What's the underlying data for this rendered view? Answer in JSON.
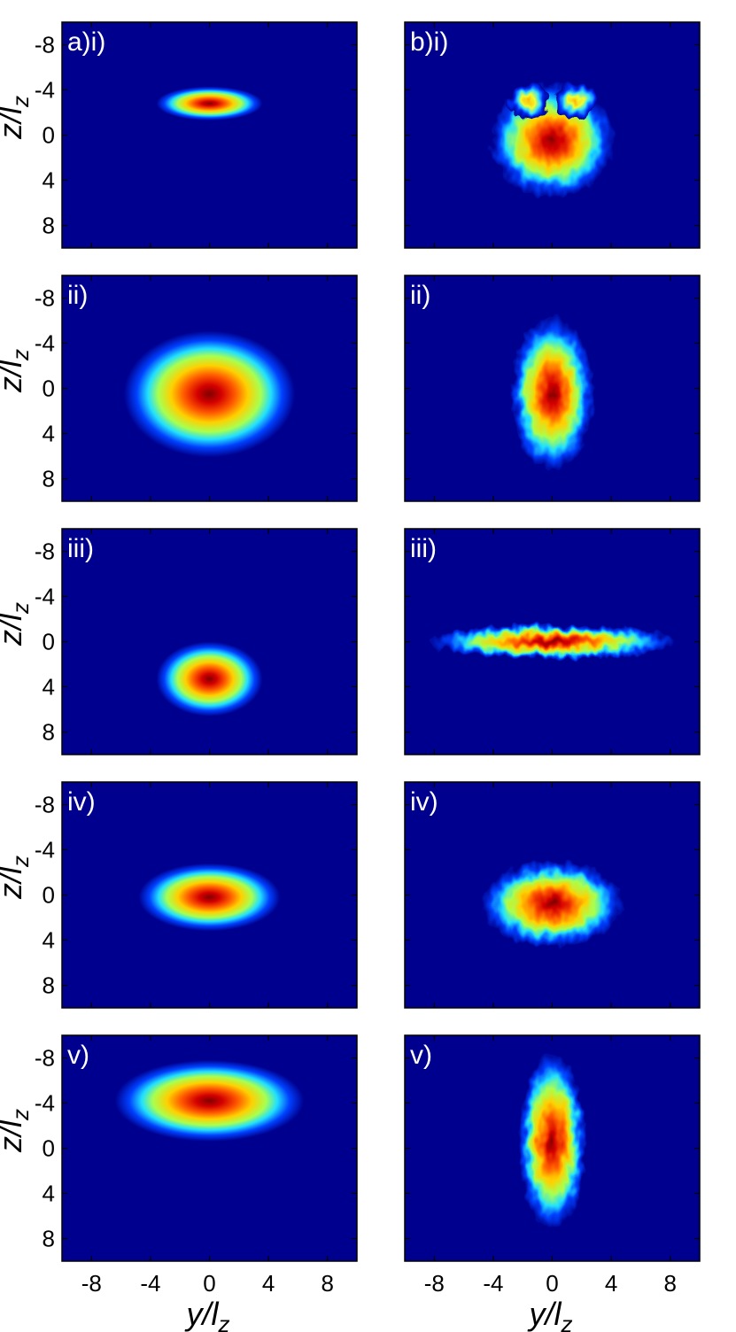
{
  "colors": {
    "background": "#00008f",
    "colormap": "jet"
  },
  "axis_labels": {
    "y_label": "z/l",
    "y_label_sub": "z",
    "x_label": "y/l",
    "x_label_sub": "z"
  },
  "chart_data": {
    "type": "heatmap",
    "colormap": "jet",
    "layout": "5 rows x 2 columns of density maps",
    "x_axis": {
      "label": "y/l_z",
      "range": [
        -10,
        10
      ],
      "ticks": [
        -8,
        -4,
        0,
        4,
        8
      ]
    },
    "y_axis": {
      "label": "z/l_z",
      "range": [
        -10,
        10
      ],
      "ticks": [
        -8,
        -4,
        0,
        4,
        8
      ],
      "inverted": true
    },
    "panels": [
      {
        "label": "a)i)",
        "col": "a",
        "row": 0,
        "shape": "smooth",
        "blobs": [
          {
            "cx": 0,
            "cz": -2.8,
            "sy": 3.6,
            "sz": 1.5,
            "amp": 1.0
          }
        ]
      },
      {
        "label": "ii)",
        "col": "a",
        "row": 1,
        "shape": "smooth",
        "blobs": [
          {
            "cx": 0,
            "cz": 0.5,
            "sy": 5.8,
            "sz": 5.6,
            "amp": 1.0
          }
        ]
      },
      {
        "label": "iii)",
        "col": "a",
        "row": 2,
        "shape": "smooth",
        "blobs": [
          {
            "cx": 0,
            "cz": 3.3,
            "sy": 3.6,
            "sz": 3.3,
            "amp": 1.0
          }
        ]
      },
      {
        "label": "iv)",
        "col": "a",
        "row": 3,
        "shape": "smooth",
        "blobs": [
          {
            "cx": 0,
            "cz": 0.2,
            "sy": 4.8,
            "sz": 3.0,
            "amp": 1.0
          }
        ]
      },
      {
        "label": "v)",
        "col": "a",
        "row": 4,
        "shape": "smooth",
        "blobs": [
          {
            "cx": 0,
            "cz": -4.2,
            "sy": 6.4,
            "sz": 3.6,
            "amp": 1.0
          }
        ]
      },
      {
        "label": "b)i)",
        "col": "b",
        "row": 0,
        "shape": "fringed",
        "blobs": [
          {
            "cx": 0,
            "cz": 0.5,
            "sy": 4.2,
            "sz": 5.0,
            "amp": 1.0
          },
          {
            "cx": -1.6,
            "cz": -3.0,
            "sy": 1.4,
            "sz": 1.6,
            "amp": 0.55
          },
          {
            "cx": 1.6,
            "cz": -3.0,
            "sy": 1.4,
            "sz": 1.6,
            "amp": 0.55
          }
        ]
      },
      {
        "label": "ii)",
        "col": "b",
        "row": 1,
        "shape": "fringed",
        "blobs": [
          {
            "cx": 0,
            "cz": 0.5,
            "sy": 2.8,
            "sz": 6.8,
            "amp": 1.0
          }
        ]
      },
      {
        "label": "iii)",
        "col": "b",
        "row": 2,
        "shape": "fringed",
        "blobs": [
          {
            "cx": 0,
            "cz": 0.0,
            "sy": 8.4,
            "sz": 1.5,
            "amp": 1.0
          }
        ]
      },
      {
        "label": "iv)",
        "col": "b",
        "row": 3,
        "shape": "fringed",
        "blobs": [
          {
            "cx": 0,
            "cz": 0.8,
            "sy": 4.8,
            "sz": 3.8,
            "amp": 1.0
          }
        ]
      },
      {
        "label": "v)",
        "col": "b",
        "row": 4,
        "shape": "fringed",
        "blobs": [
          {
            "cx": 0,
            "cz": -0.6,
            "sy": 2.3,
            "sz": 7.8,
            "amp": 1.0
          }
        ]
      }
    ]
  }
}
